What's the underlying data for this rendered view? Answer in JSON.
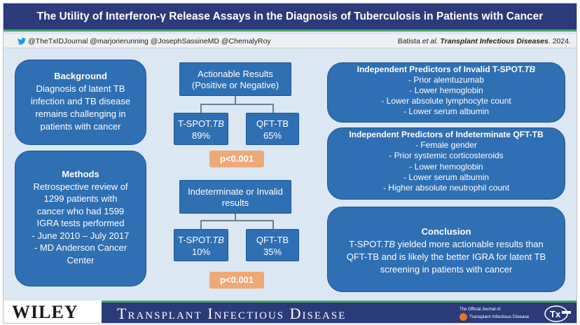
{
  "header": {
    "title": "The Utility of Interferon-γ Release Assays in the Diagnosis of Tuberculosis in Patients with Cancer"
  },
  "social": {
    "handles": "@TheTxIDJournal  @marjorierunning @JosephSassineMD @ChemalyRoy",
    "citation_author": "Batista ",
    "citation_etal": "et al.",
    "citation_journal": "Transplant Infectious Diseases",
    "citation_year": ". 2024."
  },
  "background": {
    "heading": "Background",
    "lines": [
      "Diagnosis of latent TB",
      "infection and TB disease",
      "remains challenging in",
      "patients with cancer"
    ]
  },
  "methods": {
    "heading": "Methods",
    "lines": [
      "Retrospective review of",
      "1299 patients with",
      "cancer who had 1599",
      "IGRA tests performed",
      "- June 2010 – July 2017",
      "- MD Anderson Cancer",
      "Center"
    ]
  },
  "actionable": {
    "lines": [
      "Actionable Results",
      "(Positive or Negative)"
    ],
    "tspot_name": "T-SPOT.",
    "tspot_italic": "TB",
    "tspot_value": "89%",
    "qft_name": "QFT-TB",
    "qft_value": "65%",
    "p_value": "p<0.001"
  },
  "indeterminate": {
    "lines": [
      "Indeterminate or Invalid",
      "results"
    ],
    "tspot_name": "T-SPOT.",
    "tspot_italic": "TB",
    "tspot_value": "10%",
    "qft_name": "QFT-TB",
    "qft_value": "35%",
    "p_value": "p<0.001"
  },
  "invalid_predictors": {
    "heading": "Independent Predictors of Invalid T-SPOT.",
    "heading_italic": "TB",
    "items": [
      "Prior alemtuzumab",
      "Lower hemoglobin",
      "Lower absolute lymphocyte count",
      "Lower serum albumin"
    ]
  },
  "indeterminate_predictors": {
    "heading": "Independent Predictors of Indeterminate QFT-TB",
    "items": [
      "Female gender",
      "Prior systemic corticosteroids",
      "Lower hemoglobin",
      "Lower serum albumin",
      "Higher absolute neutrophil count"
    ]
  },
  "conclusion": {
    "heading": "Conclusion",
    "line1_pre": "T-SPOT.",
    "line1_italic": "TB",
    "line1_post": " yielded more actionable results than",
    "lines": [
      "QFT-TB and is likely the better IGRA for latent TB",
      "screening in patients with cancer"
    ]
  },
  "footer": {
    "publisher": "WILEY",
    "journal_name": "Transplant Infectious Disease",
    "official_line1": "The Official Journal of",
    "official_line2": "Transplant Infectious Disease"
  },
  "colors": {
    "navy": "#2b3a78",
    "box_blue": "#2f6fb4",
    "accent_green": "#4aa26a",
    "p_orange": "#f0a976",
    "panel_bg": "#dbe7f3"
  }
}
